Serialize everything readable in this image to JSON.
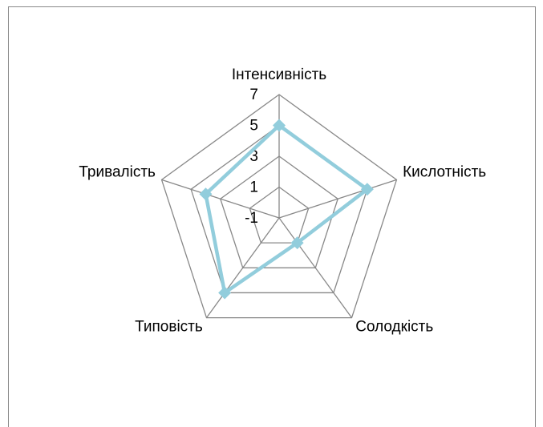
{
  "chart_data": {
    "type": "radar",
    "categories": [
      "Інтенсивність",
      "Кислотність",
      "Солодкість",
      "Типовість",
      "Тривалість"
    ],
    "series": [
      {
        "name": null,
        "color": "#92cddc",
        "values": [
          5,
          5,
          1,
          5,
          4
        ]
      }
    ],
    "ylim": [
      -1,
      7
    ],
    "yticks": [
      -1,
      1,
      3,
      5,
      7
    ],
    "grid": true
  }
}
